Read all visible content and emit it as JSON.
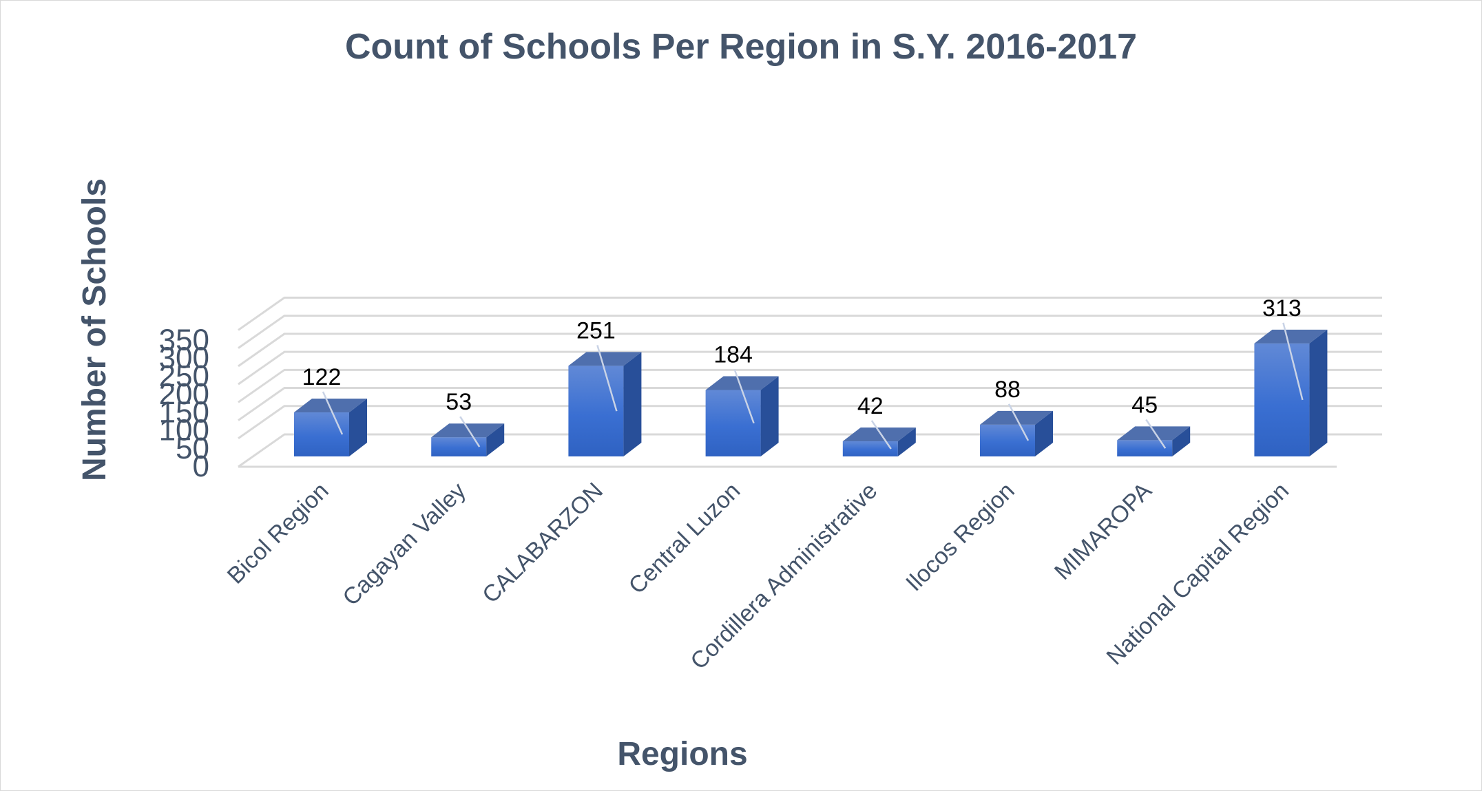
{
  "chart_data": {
    "type": "bar",
    "style": "3d-column",
    "title": "Count of Schools Per Region in S.Y. 2016-2017",
    "xlabel": "Regions",
    "ylabel": "Number of Schools",
    "ylim": [
      0,
      350
    ],
    "yticks": [
      0,
      50,
      100,
      150,
      200,
      250,
      300,
      350
    ],
    "categories": [
      "Bicol Region",
      "Cagayan Valley",
      "CALABARZON",
      "Central Luzon",
      "Cordillera Administrative",
      "Ilocos Region",
      "MIMAROPA",
      "National Capital Region"
    ],
    "values": [
      122,
      53,
      251,
      184,
      42,
      88,
      45,
      313
    ],
    "grid": true,
    "legend": "none",
    "data_labels": true
  },
  "colors": {
    "text": "#44546a",
    "grid": "#d9d9d9",
    "bar_front": "#3b6fd0",
    "bar_front_light": "#5b86d8",
    "bar_side": "#284f99",
    "bar_top": "#4f6fad",
    "label": "#000000"
  }
}
